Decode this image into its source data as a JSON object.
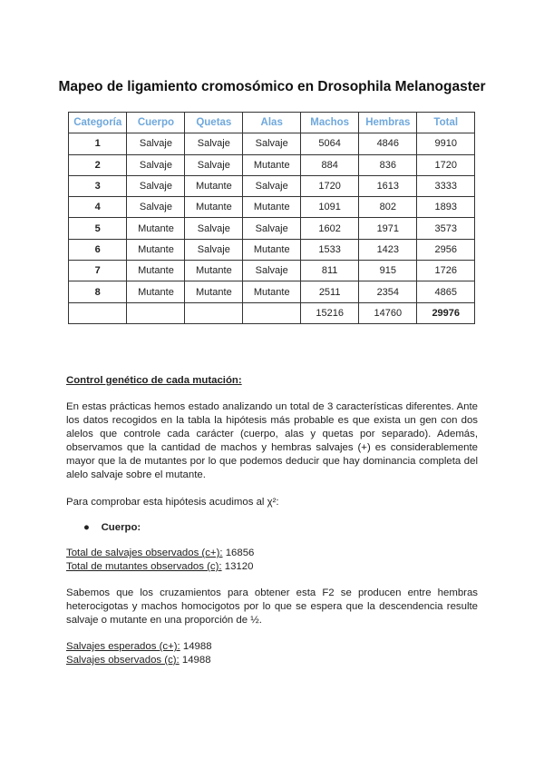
{
  "title": "Mapeo de ligamiento cromosómico en Drosophila Melanogaster",
  "table": {
    "headers": [
      "Categoría",
      "Cuerpo",
      "Quetas",
      "Alas",
      "Machos",
      "Hembras",
      "Total"
    ],
    "rows": [
      [
        "1",
        "Salvaje",
        "Salvaje",
        "Salvaje",
        "5064",
        "4846",
        "9910"
      ],
      [
        "2",
        "Salvaje",
        "Salvaje",
        "Mutante",
        "884",
        "836",
        "1720"
      ],
      [
        "3",
        "Salvaje",
        "Mutante",
        "Salvaje",
        "1720",
        "1613",
        "3333"
      ],
      [
        "4",
        "Salvaje",
        "Mutante",
        "Mutante",
        "1091",
        "802",
        "1893"
      ],
      [
        "5",
        "Mutante",
        "Salvaje",
        "Salvaje",
        "1602",
        "1971",
        "3573"
      ],
      [
        "6",
        "Mutante",
        "Salvaje",
        "Mutante",
        "1533",
        "1423",
        "2956"
      ],
      [
        "7",
        "Mutante",
        "Mutante",
        "Salvaje",
        "811",
        "915",
        "1726"
      ],
      [
        "8",
        "Mutante",
        "Mutante",
        "Mutante",
        "2511",
        "2354",
        "4865"
      ]
    ],
    "totals": [
      "",
      "",
      "",
      "",
      "15216",
      "14760",
      "29976"
    ],
    "header_color": "#6fa8dc"
  },
  "section_heading": "Control genético de cada mutación:",
  "paragraph1": "En estas prácticas hemos estado analizando un total de 3 características diferentes. Ante los datos recogidos en la tabla la hipótesis más probable es que exista un gen con dos alelos que controle cada carácter (cuerpo, alas y quetas por separado). Además, observamos que la cantidad de machos y hembras salvajes (+) es considerablemente mayor que la de mutantes por lo que podemos deducir que hay dominancia completa del alelo salvaje sobre el mutante.",
  "paragraph2": "Para comprobar esta hipótesis acudimos al χ²:",
  "bullet": "Cuerpo:",
  "observed": [
    {
      "label": "Total de salvajes observados (c+):",
      "value": "16856"
    },
    {
      "label": "Total de mutantes observados (c):",
      "value": "13120"
    }
  ],
  "paragraph3": "Sabemos que los cruzamientos para obtener esta F2 se producen entre hembras heterocigotas y machos homocigotos por lo que se espera que la descendencia resulte salvaje o mutante en una proporción de ½.",
  "expected": [
    {
      "label": "Salvajes esperados (c+):",
      "value": "14988"
    },
    {
      "label": "Salvajes observados (c):",
      "value": "14988"
    }
  ]
}
